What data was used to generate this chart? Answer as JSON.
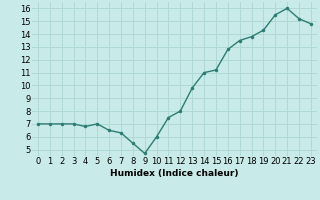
{
  "x": [
    0,
    1,
    2,
    3,
    4,
    5,
    6,
    7,
    8,
    9,
    10,
    11,
    12,
    13,
    14,
    15,
    16,
    17,
    18,
    19,
    20,
    21,
    22,
    23
  ],
  "y": [
    7.0,
    7.0,
    7.0,
    7.0,
    6.8,
    7.0,
    6.5,
    6.3,
    5.5,
    4.7,
    6.0,
    7.5,
    8.0,
    9.8,
    11.0,
    11.2,
    12.8,
    13.5,
    13.8,
    14.3,
    15.5,
    16.0,
    15.2,
    14.8
  ],
  "xlabel": "Humidex (Indice chaleur)",
  "ylabel": "",
  "ylim": [
    4.5,
    16.5
  ],
  "xlim": [
    -0.5,
    23.5
  ],
  "yticks": [
    5,
    6,
    7,
    8,
    9,
    10,
    11,
    12,
    13,
    14,
    15,
    16
  ],
  "xticks": [
    0,
    1,
    2,
    3,
    4,
    5,
    6,
    7,
    8,
    9,
    10,
    11,
    12,
    13,
    14,
    15,
    16,
    17,
    18,
    19,
    20,
    21,
    22,
    23
  ],
  "line_color": "#2d7d74",
  "marker_color": "#2d7d74",
  "bg_color": "#c8eae8",
  "grid_color": "#b0d8d4",
  "axis_label_fontsize": 6.5,
  "tick_fontsize": 6.0
}
